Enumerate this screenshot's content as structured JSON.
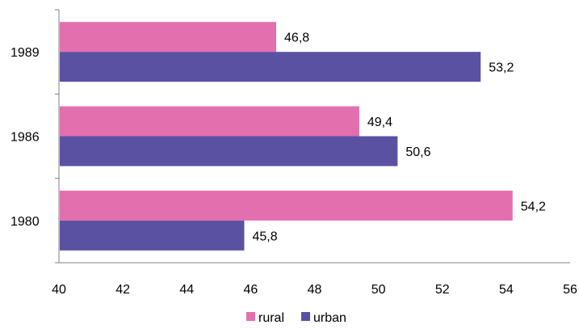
{
  "chart_data": {
    "type": "bar",
    "orientation": "horizontal",
    "categories": [
      "1980",
      "1986",
      "1989"
    ],
    "series": [
      {
        "name": "rural",
        "values": [
          54.2,
          49.4,
          46.8
        ],
        "labels": [
          "54,2",
          "49,4",
          "46,8"
        ],
        "color": "#E46FAE"
      },
      {
        "name": "urban",
        "values": [
          45.8,
          50.6,
          53.2
        ],
        "labels": [
          "45,8",
          "50,6",
          "53,2"
        ],
        "color": "#5B51A3"
      }
    ],
    "xlim": [
      40,
      56
    ],
    "xticks": [
      "40",
      "42",
      "44",
      "46",
      "48",
      "50",
      "52",
      "54",
      "56"
    ],
    "grid": false,
    "legend_position": "bottom"
  }
}
